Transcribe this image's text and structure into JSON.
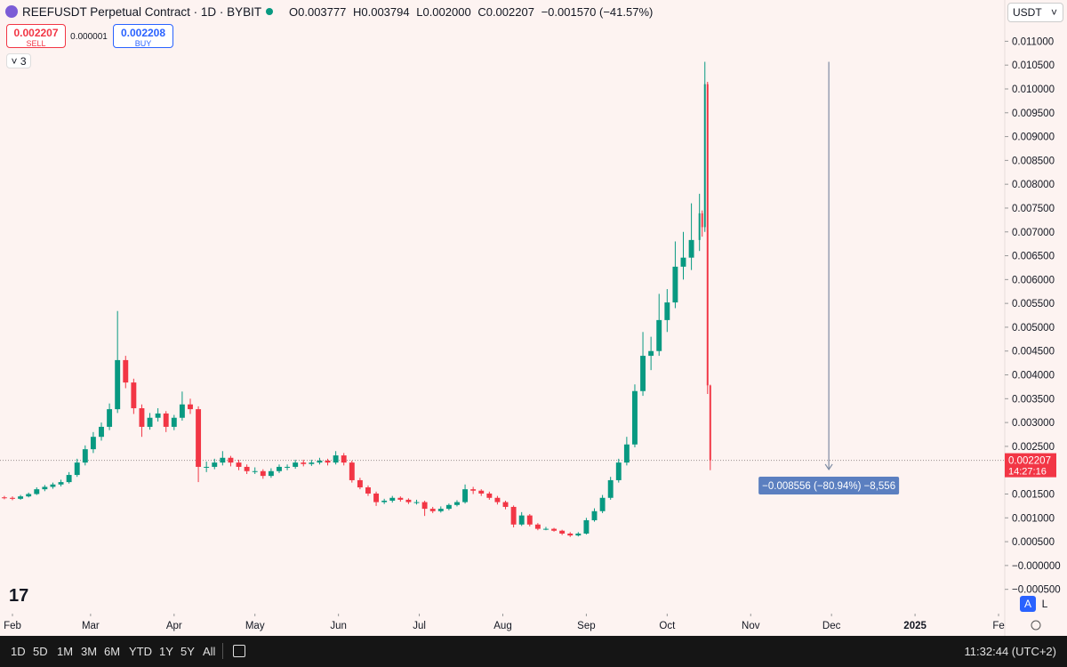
{
  "header": {
    "symbol": "REEFUSDT Perpetual Contract · 1D · BYBIT",
    "o_label": "O",
    "o": "0.003777",
    "h_label": "H",
    "h": "0.003794",
    "l_label": "L",
    "l": "0.002000",
    "c_label": "C",
    "c": "0.002207",
    "change": "−0.001570 (−41.57%)",
    "currency": "USDT",
    "sell_price": "0.002207",
    "sell": "SELL",
    "spread": "0.000001",
    "buy_price": "0.002208",
    "buy": "BUY",
    "indicators": "3"
  },
  "chart_data": {
    "type": "candlestick",
    "x": [
      -3,
      0,
      3,
      6,
      9,
      12,
      15,
      18,
      21,
      24,
      27,
      30,
      33,
      36,
      39,
      42,
      45,
      48,
      51,
      54,
      57,
      60,
      63,
      66,
      69,
      72,
      75,
      78,
      81,
      84,
      87,
      90,
      93,
      96,
      99,
      102,
      105,
      108,
      111,
      114,
      117,
      120,
      123,
      126,
      129,
      132,
      135,
      138,
      141,
      144,
      147,
      150,
      153,
      156,
      159,
      162,
      165,
      168,
      171,
      174,
      177,
      180,
      183,
      186,
      189,
      192,
      195,
      198,
      201,
      204,
      207,
      210,
      213,
      216,
      219,
      222,
      225,
      228,
      231,
      234,
      237,
      240,
      243,
      246,
      249,
      252,
      255,
      256,
      257,
      258,
      259
    ],
    "open": [
      0.00143,
      0.00142,
      0.0014,
      0.00145,
      0.0015,
      0.0016,
      0.00165,
      0.0017,
      0.00175,
      0.0019,
      0.00216,
      0.00244,
      0.0027,
      0.00291,
      0.00328,
      0.00431,
      0.00384,
      0.0033,
      0.00291,
      0.0031,
      0.00319,
      0.00291,
      0.0031,
      0.00338,
      0.00328,
      0.00207,
      0.00207,
      0.00216,
      0.00226,
      0.00216,
      0.00207,
      0.00198,
      0.00198,
      0.00188,
      0.00198,
      0.00207,
      0.00207,
      0.00216,
      0.00213,
      0.00216,
      0.0022,
      0.00216,
      0.00231,
      0.00216,
      0.00179,
      0.00164,
      0.00151,
      0.00133,
      0.00136,
      0.00142,
      0.00138,
      0.00133,
      0.00133,
      0.00119,
      0.00114,
      0.00119,
      0.00127,
      0.00133,
      0.0016,
      0.00157,
      0.00151,
      0.00142,
      0.00133,
      0.00123,
      0.00086,
      0.00105,
      0.00086,
      0.00077,
      0.00077,
      0.00073,
      0.00067,
      0.00063,
      0.00067,
      0.00095,
      0.00114,
      0.00142,
      0.00179,
      0.00216,
      0.00254,
      0.00366,
      0.0044,
      0.0045,
      0.00515,
      0.00552,
      0.00627,
      0.00646,
      0.00683,
      0.00739,
      0.0071,
      0.0101,
      0.003777
    ],
    "high": [
      0.00146,
      0.00145,
      0.00148,
      0.00153,
      0.00164,
      0.00169,
      0.00174,
      0.0018,
      0.00196,
      0.00224,
      0.00252,
      0.0028,
      0.003,
      0.0034,
      0.00534,
      0.0044,
      0.00392,
      0.00338,
      0.0032,
      0.0033,
      0.00324,
      0.00316,
      0.00365,
      0.0035,
      0.00334,
      0.00218,
      0.00224,
      0.0024,
      0.0023,
      0.00222,
      0.00212,
      0.00206,
      0.00202,
      0.00204,
      0.00212,
      0.00212,
      0.00222,
      0.00222,
      0.00222,
      0.00226,
      0.00224,
      0.0024,
      0.00236,
      0.0022,
      0.00184,
      0.00168,
      0.00155,
      0.0014,
      0.00146,
      0.00145,
      0.00141,
      0.00138,
      0.00136,
      0.00123,
      0.00124,
      0.0013,
      0.00137,
      0.0017,
      0.00165,
      0.0016,
      0.00155,
      0.00146,
      0.00136,
      0.00126,
      0.00112,
      0.00108,
      0.00089,
      0.00081,
      0.00079,
      0.00075,
      0.0007,
      0.0007,
      0.001,
      0.0012,
      0.00148,
      0.00186,
      0.00224,
      0.0027,
      0.0038,
      0.0049,
      0.0048,
      0.0057,
      0.0058,
      0.0068,
      0.007,
      0.0076,
      0.0078,
      0.00745,
      0.01057,
      0.01015,
      0.003794
    ],
    "low": [
      0.00139,
      0.00137,
      0.00138,
      0.00143,
      0.00148,
      0.00156,
      0.00161,
      0.00166,
      0.00172,
      0.00186,
      0.0021,
      0.00236,
      0.00262,
      0.00284,
      0.0032,
      0.00372,
      0.00318,
      0.0027,
      0.00285,
      0.00302,
      0.0028,
      0.00284,
      0.00304,
      0.00318,
      0.00175,
      0.00196,
      0.00202,
      0.0021,
      0.00208,
      0.002,
      0.00192,
      0.00192,
      0.00182,
      0.00184,
      0.00194,
      0.002,
      0.00203,
      0.00208,
      0.00209,
      0.00212,
      0.0021,
      0.00212,
      0.0021,
      0.00174,
      0.0016,
      0.00146,
      0.00125,
      0.00129,
      0.00132,
      0.00134,
      0.00129,
      0.00128,
      0.00104,
      0.0011,
      0.00111,
      0.00116,
      0.00124,
      0.0013,
      0.0015,
      0.00146,
      0.00138,
      0.00128,
      0.00118,
      0.0008,
      0.00083,
      0.00082,
      0.00074,
      0.00074,
      0.00071,
      0.00064,
      0.0006,
      0.00061,
      0.00065,
      0.00092,
      0.0011,
      0.00138,
      0.00174,
      0.0021,
      0.00248,
      0.00356,
      0.0041,
      0.0044,
      0.0049,
      0.0054,
      0.006,
      0.0062,
      0.0066,
      0.0069,
      0.007,
      0.0036,
      0.002
    ],
    "close": [
      0.00142,
      0.0014,
      0.00145,
      0.0015,
      0.0016,
      0.00165,
      0.0017,
      0.00175,
      0.0019,
      0.00216,
      0.00244,
      0.0027,
      0.00291,
      0.00328,
      0.00431,
      0.00384,
      0.0033,
      0.00291,
      0.0031,
      0.00319,
      0.00291,
      0.0031,
      0.00338,
      0.00328,
      0.00207,
      0.00207,
      0.00216,
      0.00226,
      0.00216,
      0.00207,
      0.00198,
      0.00198,
      0.00188,
      0.00198,
      0.00207,
      0.00207,
      0.00216,
      0.00213,
      0.00216,
      0.0022,
      0.00216,
      0.00231,
      0.00216,
      0.00179,
      0.00164,
      0.00151,
      0.00133,
      0.00136,
      0.00142,
      0.00138,
      0.00133,
      0.00133,
      0.00119,
      0.00114,
      0.00119,
      0.00127,
      0.00133,
      0.0016,
      0.00157,
      0.00151,
      0.00142,
      0.00133,
      0.00123,
      0.00086,
      0.00105,
      0.00086,
      0.00077,
      0.00077,
      0.00073,
      0.00067,
      0.00063,
      0.00067,
      0.00095,
      0.00114,
      0.00142,
      0.00179,
      0.00216,
      0.00254,
      0.00366,
      0.0044,
      0.0045,
      0.00515,
      0.00552,
      0.00627,
      0.00646,
      0.00683,
      0.00739,
      0.0071,
      0.0101,
      0.00378,
      0.002207
    ],
    "up_color": "#089981",
    "down_color": "#f23645",
    "xlim": [
      -4.62,
      368.3
    ],
    "xticks": [
      {
        "value": 0,
        "label": "Feb"
      },
      {
        "value": 29,
        "label": "Mar"
      },
      {
        "value": 60,
        "label": "Apr"
      },
      {
        "value": 90,
        "label": "May"
      },
      {
        "value": 121,
        "label": "Jun"
      },
      {
        "value": 151,
        "label": "Jul"
      },
      {
        "value": 182,
        "label": "Aug"
      },
      {
        "value": 213,
        "label": "Sep"
      },
      {
        "value": 243,
        "label": "Oct"
      },
      {
        "value": 274,
        "label": "Nov"
      },
      {
        "value": 304,
        "label": "Dec"
      },
      {
        "value": 335,
        "label": "2025"
      },
      {
        "value": 366,
        "label": "Fe"
      }
    ],
    "ylim": [
      -0.00101,
      0.011866
    ],
    "yticks": [
      {
        "value": 0.011,
        "label": "0.011000"
      },
      {
        "value": 0.0105,
        "label": "0.010500"
      },
      {
        "value": 0.01,
        "label": "0.010000"
      },
      {
        "value": 0.0095,
        "label": "0.009500"
      },
      {
        "value": 0.009,
        "label": "0.009000"
      },
      {
        "value": 0.0085,
        "label": "0.008500"
      },
      {
        "value": 0.008,
        "label": "0.008000"
      },
      {
        "value": 0.0075,
        "label": "0.007500"
      },
      {
        "value": 0.007,
        "label": "0.007000"
      },
      {
        "value": 0.0065,
        "label": "0.006500"
      },
      {
        "value": 0.006,
        "label": "0.006000"
      },
      {
        "value": 0.0055,
        "label": "0.005500"
      },
      {
        "value": 0.005,
        "label": "0.005000"
      },
      {
        "value": 0.0045,
        "label": "0.004500"
      },
      {
        "value": 0.004,
        "label": "0.004000"
      },
      {
        "value": 0.0035,
        "label": "0.003500"
      },
      {
        "value": 0.003,
        "label": "0.003000"
      },
      {
        "value": 0.0025,
        "label": "0.002500"
      },
      {
        "value": 0.002,
        "label": "0.002000"
      },
      {
        "value": 0.0015,
        "label": "0.001500"
      },
      {
        "value": 0.001,
        "label": "0.001000"
      },
      {
        "value": 0.0005,
        "label": "0.000500"
      },
      {
        "value": 0,
        "label": "−0.000000"
      },
      {
        "value": -0.0005,
        "label": "−0.000500"
      }
    ],
    "price_tag": {
      "value": 0.002207,
      "label": "0.002207",
      "countdown": "14:27:16",
      "color": "#f23645"
    },
    "measure": {
      "x": 303,
      "from": 0.01057,
      "to": 0.002014,
      "label": "−0.008556 (−80.94%) −8,556",
      "color": "#5b7fc0"
    }
  },
  "toolbar": {
    "ranges": [
      "1D",
      "5D",
      "1M",
      "3M",
      "6M",
      "YTD",
      "1Y",
      "5Y",
      "All"
    ],
    "time": "11:32:44 (UTC+2)",
    "auto": "A",
    "log": "L"
  }
}
